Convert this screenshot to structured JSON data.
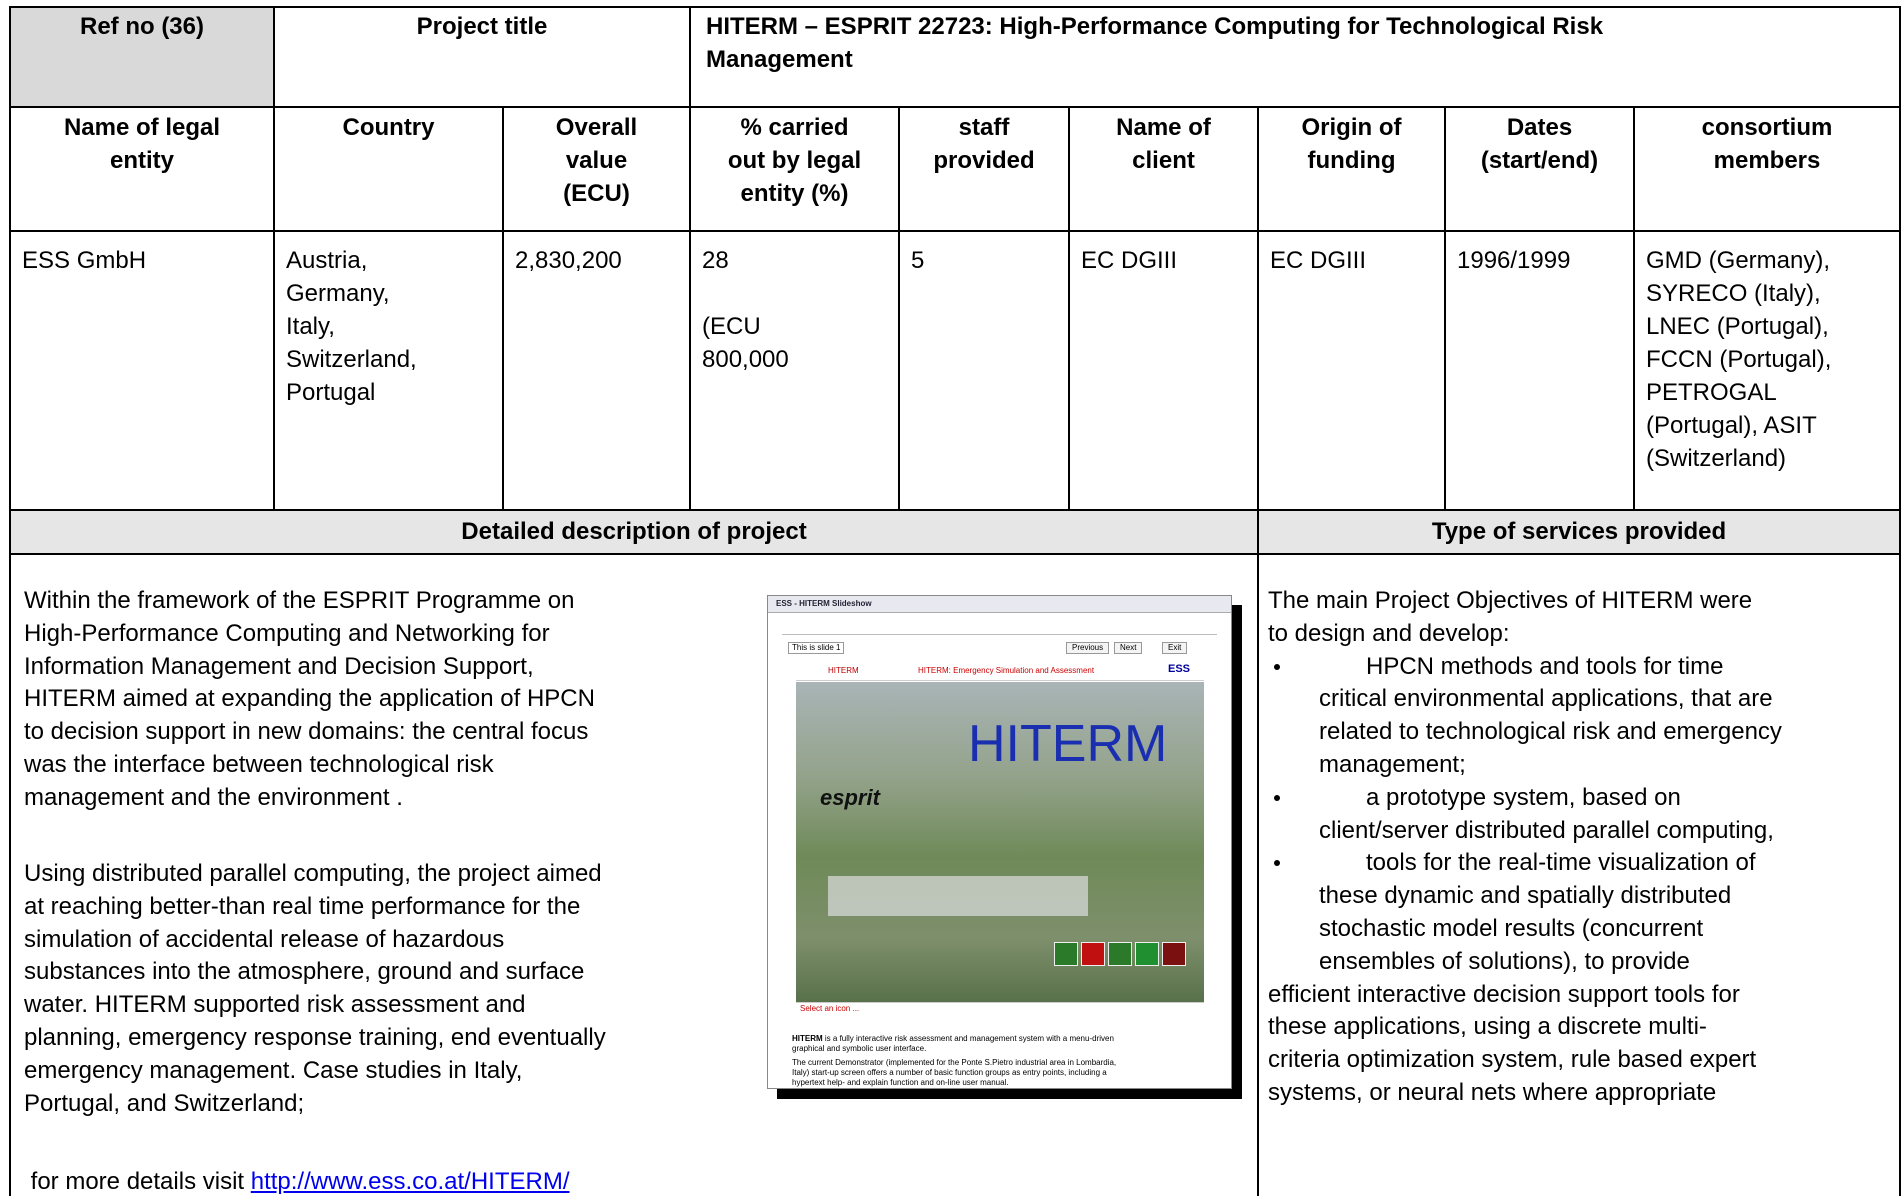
{
  "title_row": {
    "ref": "Ref no (36)",
    "project_title_label": "Project title",
    "project_title": [
      "HITERM – ESPRIT 22723: High-Performance Computing for Technological Risk",
      "Management"
    ]
  },
  "table": {
    "headers": [
      [
        "Name of legal",
        "entity"
      ],
      [
        "Country"
      ],
      [
        "Overall",
        "value",
        "(ECU)"
      ],
      [
        "% carried",
        "out by legal",
        "entity (%)"
      ],
      [
        "staff",
        "provided"
      ],
      [
        "Name of",
        "client"
      ],
      [
        "Origin of",
        "funding"
      ],
      [
        "Dates",
        "(start/end)"
      ],
      [
        "consortium",
        "members"
      ]
    ],
    "row": [
      [
        "ESS GmbH"
      ],
      [
        "Austria,",
        "Germany,",
        "Italy,",
        "Switzerland,",
        "Portugal"
      ],
      [
        "2,830,200"
      ],
      [
        "28",
        "(ECU",
        "800,000"
      ],
      [
        "5"
      ],
      [
        "EC DGIII"
      ],
      [
        "EC DGIII"
      ],
      [
        "1996/1999"
      ],
      [
        "GMD (Germany),",
        "SYRECO (Italy),",
        "LNEC (Portugal),",
        "FCCN (Portugal),",
        "PETROGAL",
        "(Portugal), ASIT",
        "(Switzerland)"
      ]
    ]
  },
  "description": {
    "heading": "Detailed description of project",
    "paragraphs": [
      [
        "Within the framework of the ESPRIT Programme on",
        "High-Performance Computing and Networking for",
        "Information Management and Decision Support,",
        "HITERM aimed at expanding the application of HPCN",
        "to decision support in new domains: the central focus",
        "was the interface between technological risk",
        "management and the environment ."
      ],
      [
        " Using distributed parallel computing, the project aimed",
        "at reaching better-than real time performance for the",
        "simulation of accidental release of hazardous",
        "substances into the atmosphere, ground and surface",
        "water. HITERM supported risk assessment and",
        "planning, emergency response training, end eventually",
        "emergency management. Case studies in Italy,",
        "Portugal, and Switzerland;"
      ]
    ],
    "more_text": " for more details visit ",
    "link": "http://www.ess.co.at/HITERM/"
  },
  "screenshot": {
    "window_title": "ESS - HITERM Slideshow",
    "slide_select": "This is slide 1",
    "buttons": [
      "Previous",
      "Next",
      "Exit"
    ],
    "banner_left": "HITERM",
    "banner_title": "HITERM: Emergency Simulation and Assessment",
    "banner_logo": "ESS",
    "logo_text": "esprit",
    "big_title": "HITERM",
    "status": "Select an icon ...",
    "caption": [
      [
        "HITERM",
        " is a fully interactive risk assessment and management system with a menu-driven"
      ],
      [
        "",
        "graphical and symbolic user interface."
      ]
    ],
    "caption2": [
      "The current Demonstrator (implemented for the Ponte S.Pietro industrial area in Lombardia,",
      "Italy) start-up screen offers a number of basic function groups as entry points, including a",
      "hypertext help- and explain function and on-line user manual."
    ]
  },
  "services": {
    "heading": "Type of services provided",
    "intro": [
      "The main Project Objectives of HITERM were",
      "to design and develop:"
    ],
    "bullets": [
      [
        "HPCN methods and tools for time",
        "critical environmental applications, that are",
        "related to technological risk and emergency",
        "management;"
      ],
      [
        "a prototype system, based on",
        "client/server distributed parallel computing,"
      ],
      [
        "tools for the real-time visualization of",
        "these dynamic and spatially distributed",
        "stochastic model results (concurrent",
        "ensembles of solutions), to provide"
      ]
    ],
    "outro": [
      "efficient interactive decision support tools for",
      "these applications, using a discrete multi-",
      "criteria optimization system, rule based expert",
      "systems, or neural nets where appropriate"
    ]
  }
}
